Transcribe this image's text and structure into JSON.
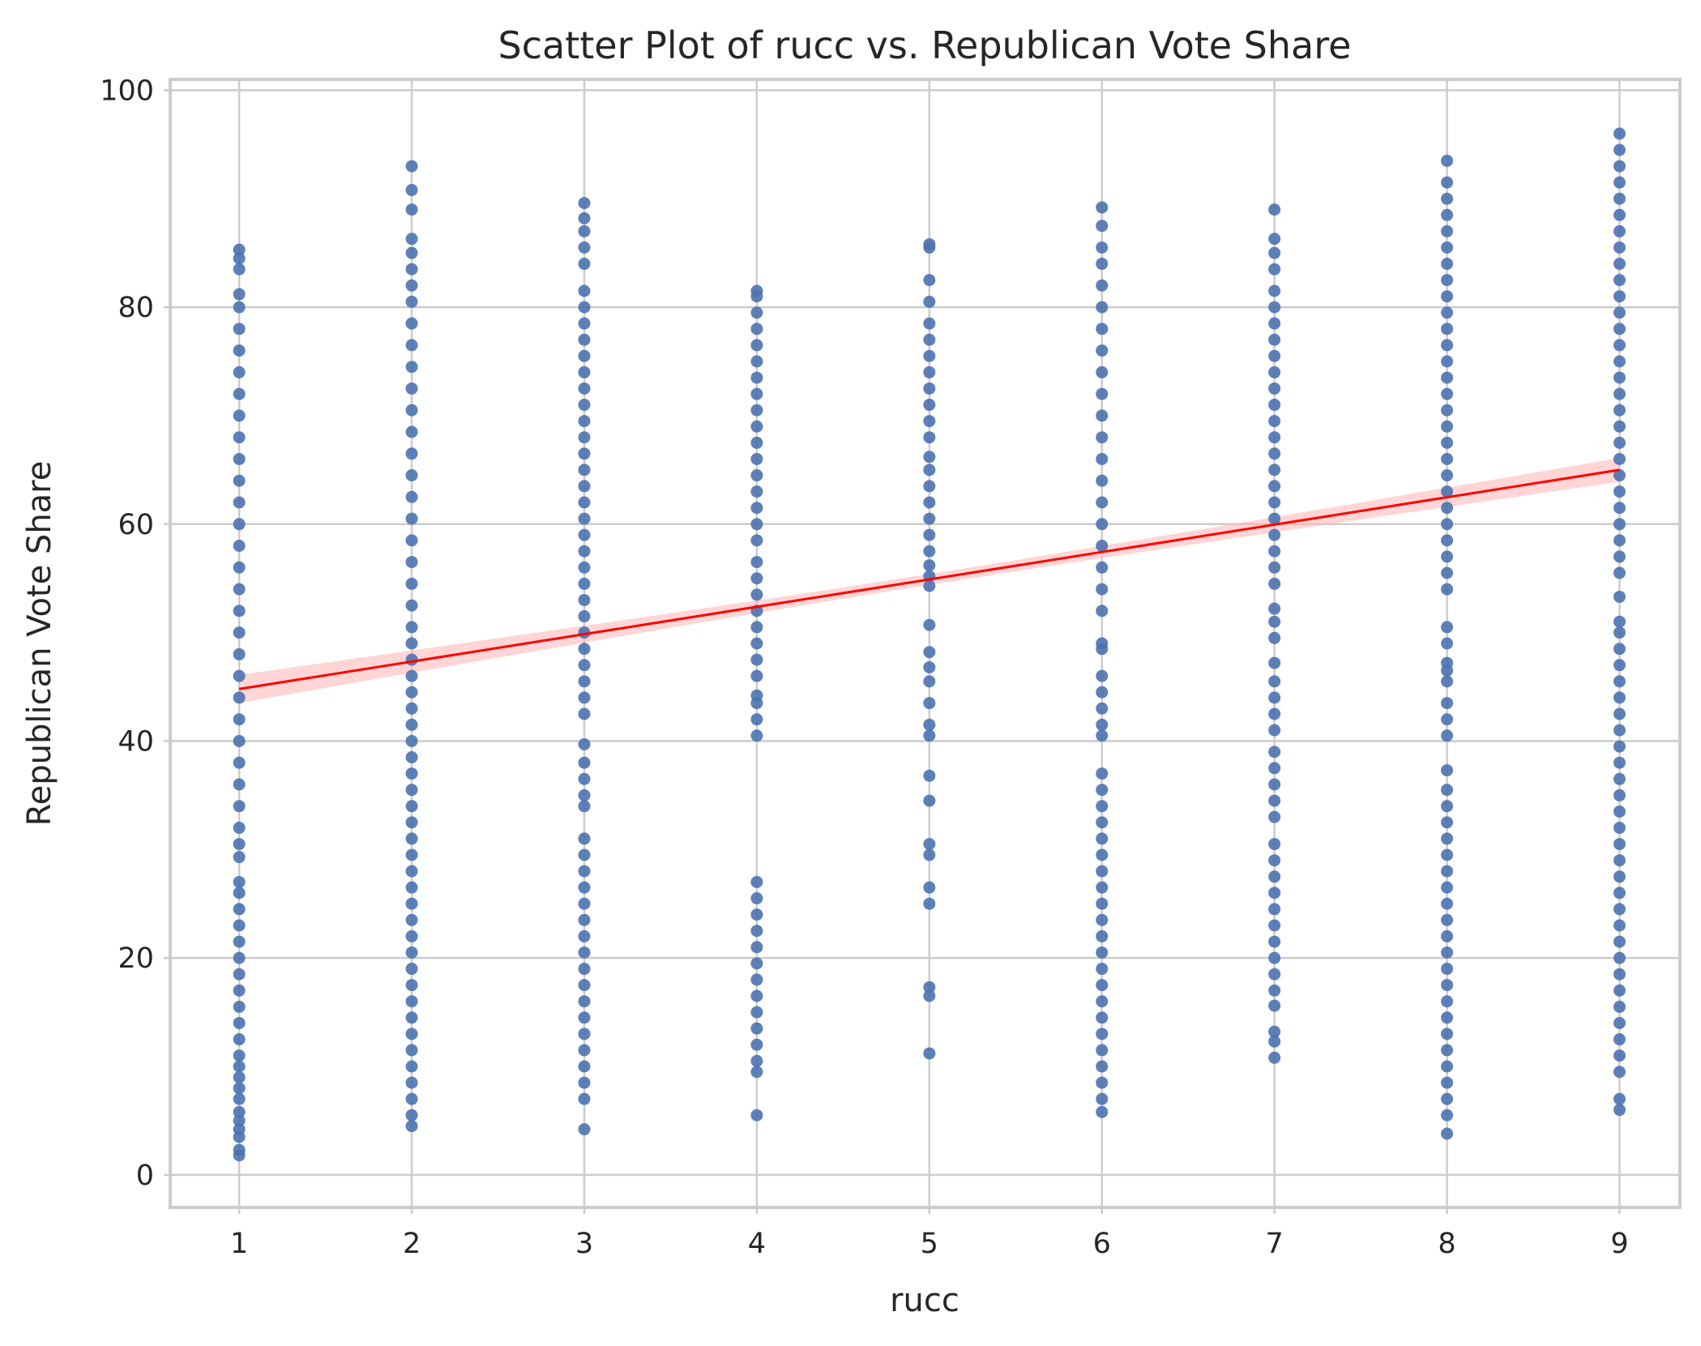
{
  "chart_data": {
    "type": "scatter",
    "title": "Scatter Plot of rucc vs. Republican Vote Share",
    "xlabel": "rucc",
    "ylabel": "Republican Vote Share",
    "xlim": [
      0.6,
      9.35
    ],
    "ylim": [
      -3.0,
      101.0
    ],
    "x_ticks": [
      1,
      2,
      3,
      4,
      5,
      6,
      7,
      8,
      9
    ],
    "y_ticks": [
      0,
      20,
      40,
      60,
      80,
      100
    ],
    "grid": true,
    "legend": "none",
    "colors": {
      "points": "#4c72b0",
      "regression_line": "#ff0000",
      "confidence_band": "#ffb3b3"
    },
    "series": [
      {
        "x": 1,
        "y_range": [
          1.8,
          85.3
        ],
        "points": [
          1.8,
          2.3,
          3.5,
          4.2,
          5.0,
          5.8,
          7.0,
          8.0,
          9.0,
          10.0,
          11.0,
          12.5,
          14.0,
          15.5,
          17.0,
          18.5,
          20.0,
          21.5,
          23.0,
          24.5,
          26.0,
          27.0,
          29.3,
          30.5,
          32.0,
          34.0,
          36.0,
          38.0,
          40.0,
          42.0,
          44.0,
          46.0,
          48.0,
          50.0,
          52.0,
          54.0,
          56.0,
          58.0,
          60.0,
          62.0,
          64.0,
          66.0,
          68.0,
          70.0,
          72.0,
          74.0,
          76.0,
          78.0,
          80.0,
          81.2,
          83.5,
          84.5,
          85.3
        ]
      },
      {
        "x": 2,
        "y_range": [
          4.5,
          93.0
        ],
        "points": [
          4.5,
          5.5,
          7.0,
          8.5,
          10.0,
          11.5,
          13.0,
          14.5,
          16.0,
          17.5,
          19.0,
          20.5,
          22.0,
          23.5,
          25.0,
          26.5,
          28.0,
          29.5,
          31.0,
          32.5,
          34.0,
          35.5,
          37.0,
          38.5,
          40.0,
          41.5,
          43.0,
          44.5,
          46.0,
          47.5,
          49.0,
          50.5,
          52.5,
          54.5,
          56.5,
          58.5,
          60.5,
          62.5,
          64.5,
          66.5,
          68.5,
          70.5,
          72.5,
          74.5,
          76.5,
          78.5,
          80.5,
          82.0,
          83.5,
          85.0,
          86.3,
          89.0,
          90.8,
          93.0
        ]
      },
      {
        "x": 3,
        "y_range": [
          4.2,
          89.6
        ],
        "points": [
          4.2,
          7.0,
          8.5,
          10.0,
          11.5,
          13.0,
          14.5,
          16.0,
          17.5,
          19.0,
          20.5,
          22.0,
          23.5,
          25.0,
          26.5,
          28.0,
          29.5,
          31.0,
          34.0,
          35.0,
          36.5,
          38.0,
          39.7,
          42.5,
          44.0,
          45.5,
          47.0,
          48.5,
          50.0,
          51.5,
          53.0,
          54.5,
          56.0,
          57.5,
          59.0,
          60.5,
          62.0,
          63.5,
          65.0,
          66.5,
          68.0,
          69.5,
          71.0,
          72.5,
          74.0,
          75.5,
          77.0,
          78.5,
          80.0,
          81.5,
          84.0,
          85.5,
          87.0,
          88.2,
          89.6
        ]
      },
      {
        "x": 4,
        "y_range": [
          5.5,
          81.5
        ],
        "points": [
          5.5,
          9.5,
          10.5,
          12.0,
          13.5,
          15.0,
          16.5,
          18.0,
          19.5,
          21.0,
          22.5,
          24.0,
          25.5,
          27.0,
          40.5,
          42.0,
          43.5,
          44.2,
          46.0,
          47.5,
          49.0,
          50.5,
          52.0,
          53.5,
          55.0,
          56.5,
          58.5,
          60.0,
          61.5,
          63.0,
          64.5,
          66.0,
          67.5,
          69.0,
          70.5,
          72.0,
          73.5,
          75.0,
          76.5,
          78.0,
          79.5,
          81.0,
          81.5
        ]
      },
      {
        "x": 5,
        "y_range": [
          11.2,
          85.8
        ],
        "points": [
          11.2,
          16.5,
          17.3,
          25.0,
          26.5,
          29.5,
          30.5,
          34.5,
          36.8,
          40.5,
          41.5,
          43.5,
          45.5,
          46.8,
          48.2,
          50.7,
          54.3,
          55.2,
          56.2,
          57.5,
          59.0,
          60.5,
          62.0,
          63.5,
          65.0,
          66.2,
          68.0,
          69.5,
          71.0,
          72.5,
          74.0,
          75.5,
          77.0,
          78.5,
          80.5,
          82.5,
          85.5,
          85.8
        ]
      },
      {
        "x": 6,
        "y_range": [
          5.8,
          89.2
        ],
        "points": [
          5.8,
          7.0,
          8.5,
          10.0,
          11.5,
          13.0,
          14.5,
          16.0,
          17.5,
          19.0,
          20.5,
          22.0,
          23.5,
          25.0,
          26.5,
          28.0,
          29.5,
          31.0,
          32.5,
          34.0,
          35.5,
          37.0,
          40.5,
          41.5,
          43.0,
          44.5,
          46.0,
          48.5,
          49.0,
          52.0,
          54.0,
          56.0,
          58.0,
          60.0,
          62.0,
          64.0,
          66.0,
          68.0,
          70.0,
          72.0,
          74.0,
          76.0,
          78.0,
          80.0,
          82.0,
          84.0,
          85.5,
          87.5,
          89.2
        ]
      },
      {
        "x": 7,
        "y_range": [
          10.8,
          89.0
        ],
        "points": [
          10.8,
          12.3,
          13.2,
          15.6,
          17.0,
          18.5,
          20.0,
          21.5,
          23.0,
          24.5,
          26.0,
          27.5,
          29.0,
          30.5,
          33.0,
          34.5,
          36.0,
          37.5,
          39.0,
          41.0,
          42.5,
          44.0,
          45.5,
          47.2,
          49.5,
          51.0,
          52.2,
          54.5,
          56.0,
          57.5,
          59.0,
          60.5,
          62.0,
          63.5,
          65.0,
          66.5,
          68.0,
          69.5,
          71.0,
          72.5,
          74.0,
          75.5,
          77.0,
          78.5,
          80.0,
          81.5,
          83.5,
          85.0,
          86.3,
          89.0
        ]
      },
      {
        "x": 8,
        "y_range": [
          3.8,
          93.5
        ],
        "points": [
          3.8,
          5.5,
          7.0,
          8.5,
          10.0,
          11.5,
          13.0,
          14.5,
          16.0,
          17.5,
          19.0,
          20.5,
          22.0,
          23.5,
          25.0,
          26.5,
          28.0,
          29.5,
          31.0,
          32.5,
          34.0,
          35.5,
          37.3,
          40.5,
          42.0,
          43.5,
          45.5,
          46.5,
          47.2,
          49.0,
          50.5,
          54.0,
          55.5,
          57.0,
          58.5,
          60.0,
          61.5,
          63.0,
          64.5,
          66.0,
          67.5,
          69.0,
          70.5,
          72.0,
          73.5,
          75.0,
          76.5,
          78.0,
          79.5,
          81.0,
          82.5,
          84.0,
          85.5,
          87.0,
          88.5,
          90.0,
          91.5,
          93.5
        ]
      },
      {
        "x": 9,
        "y_range": [
          6.0,
          96.0
        ],
        "points": [
          6.0,
          7.0,
          9.5,
          11.0,
          12.5,
          14.0,
          15.5,
          17.0,
          18.5,
          20.0,
          21.5,
          23.0,
          24.5,
          26.0,
          27.5,
          29.0,
          30.5,
          32.0,
          33.5,
          35.0,
          36.5,
          38.0,
          39.5,
          41.0,
          42.5,
          44.0,
          45.5,
          47.0,
          48.5,
          50.0,
          51.0,
          53.3,
          55.5,
          57.0,
          58.5,
          60.0,
          61.5,
          63.0,
          64.5,
          66.0,
          67.5,
          69.0,
          70.5,
          72.0,
          73.5,
          75.0,
          76.5,
          78.0,
          79.5,
          81.0,
          82.5,
          84.0,
          85.5,
          87.0,
          88.5,
          90.0,
          91.5,
          93.0,
          94.5,
          96.0
        ]
      }
    ],
    "regression_line": {
      "x": [
        1,
        9
      ],
      "y": [
        44.8,
        65.0
      ],
      "ci_halfwidth_at_ends": [
        1.3,
        1.1
      ],
      "ci_halfwidth_at_center": 0.5
    }
  }
}
